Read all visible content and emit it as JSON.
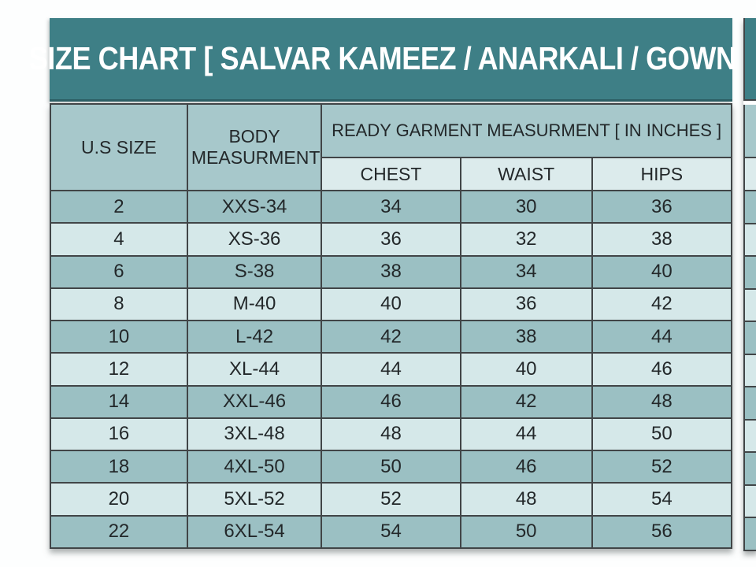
{
  "title": "SIZE CHART [ SALVAR KAMEEZ / ANARKALI / GOWN ]",
  "table": {
    "headers": {
      "us_size": "U.S SIZE",
      "body_measurement": "BODY MEASURMENT",
      "ready_garment": "READY GARMENT MEASURMENT [ IN INCHES ]",
      "sub": [
        "CHEST",
        "WAIST",
        "HIPS"
      ]
    },
    "rows": [
      [
        "2",
        "XXS-34",
        "34",
        "30",
        "36"
      ],
      [
        "4",
        "XS-36",
        "36",
        "32",
        "38"
      ],
      [
        "6",
        "S-38",
        "38",
        "34",
        "40"
      ],
      [
        "8",
        "M-40",
        "40",
        "36",
        "42"
      ],
      [
        "10",
        "L-42",
        "42",
        "38",
        "44"
      ],
      [
        "12",
        "XL-44",
        "44",
        "40",
        "46"
      ],
      [
        "14",
        "XXL-46",
        "46",
        "42",
        "48"
      ],
      [
        "16",
        "3XL-48",
        "48",
        "44",
        "50"
      ],
      [
        "18",
        "4XL-50",
        "50",
        "46",
        "52"
      ],
      [
        "20",
        "5XL-52",
        "52",
        "48",
        "54"
      ],
      [
        "22",
        "6XL-54",
        "54",
        "50",
        "56"
      ]
    ]
  },
  "colors": {
    "title_bg": "#3e7f86",
    "title_text": "#ffffff",
    "header_bg": "#a7c8cb",
    "subheader_bg": "#dcebec",
    "row_dark": "#9bc0c3",
    "row_light": "#d5e8e9",
    "border": "#414547",
    "text": "#23282a"
  }
}
